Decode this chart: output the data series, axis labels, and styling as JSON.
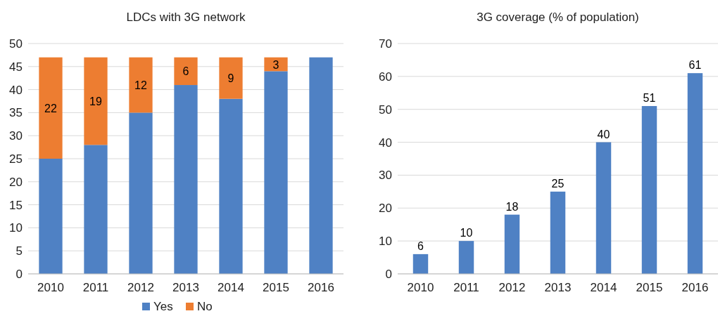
{
  "chart_data": [
    {
      "type": "bar",
      "title": "LDCs with 3G network",
      "categories": [
        "2010",
        "2011",
        "2012",
        "2013",
        "2014",
        "2015",
        "2016"
      ],
      "stacked": true,
      "series": [
        {
          "name": "Yes",
          "color": "#4f81c4",
          "values": [
            25,
            28,
            35,
            41,
            38,
            44,
            47
          ]
        },
        {
          "name": "No",
          "color": "#ed7d31",
          "values": [
            22,
            19,
            12,
            6,
            9,
            3,
            null
          ],
          "value_labels": [
            "22",
            "19",
            "12",
            "6",
            "9",
            "3",
            null
          ]
        }
      ],
      "ylim": [
        0,
        50
      ],
      "yticks": [
        0,
        5,
        10,
        15,
        20,
        25,
        30,
        35,
        40,
        45,
        50
      ],
      "grid": "y",
      "legend": "bottom"
    },
    {
      "type": "bar",
      "title": "3G coverage (% of population)",
      "categories": [
        "2010",
        "2011",
        "2012",
        "2013",
        "2014",
        "2015",
        "2016"
      ],
      "values": [
        6,
        10,
        18,
        25,
        40,
        51,
        61
      ],
      "color": "#4f81c4",
      "data_labels": true,
      "ylim": [
        0,
        70
      ],
      "yticks": [
        0,
        10,
        20,
        30,
        40,
        50,
        60,
        70
      ],
      "grid": "y"
    }
  ]
}
